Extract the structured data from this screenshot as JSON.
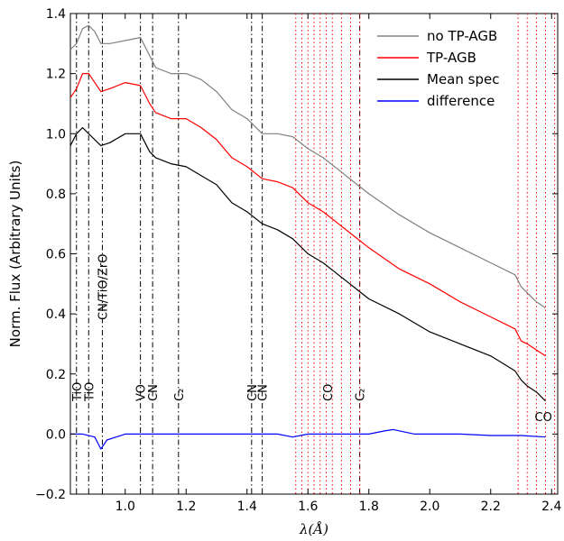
{
  "chart_data": {
    "type": "line",
    "title": "",
    "xlabel": "λ(Å)",
    "ylabel": "Norm. Flux (Arbitrary Units)",
    "xlim": [
      0.82,
      2.42
    ],
    "ylim": [
      -0.2,
      1.4
    ],
    "xticks": [
      0.8,
      1.0,
      1.2,
      1.4,
      1.6,
      1.8,
      2.0,
      2.2,
      2.4
    ],
    "xtick_labels": [
      "0.8",
      "1.0",
      "1.2",
      "1.4",
      "1.6",
      "1.8",
      "2.0",
      "2.2",
      "2.4"
    ],
    "yticks": [
      -0.2,
      0.0,
      0.2,
      0.4,
      0.6,
      0.8,
      1.0,
      1.2,
      1.4
    ],
    "ytick_labels": [
      "−0.2",
      "0.0",
      "0.2",
      "0.4",
      "0.6",
      "0.8",
      "1.0",
      "1.2",
      "1.4"
    ],
    "grid": false,
    "legend_position": "top-right",
    "series": [
      {
        "name": "no TP-AGB",
        "color": "#808080",
        "x": [
          0.82,
          0.84,
          0.86,
          0.88,
          0.9,
          0.92,
          0.95,
          1.0,
          1.05,
          1.08,
          1.1,
          1.15,
          1.2,
          1.25,
          1.3,
          1.35,
          1.4,
          1.45,
          1.5,
          1.55,
          1.6,
          1.65,
          1.7,
          1.75,
          1.8,
          1.9,
          2.0,
          2.1,
          2.2,
          2.28,
          2.3,
          2.32,
          2.35,
          2.38
        ],
        "y": [
          1.28,
          1.3,
          1.35,
          1.36,
          1.34,
          1.3,
          1.3,
          1.31,
          1.32,
          1.26,
          1.22,
          1.2,
          1.2,
          1.18,
          1.14,
          1.08,
          1.05,
          1.0,
          1.0,
          0.99,
          0.95,
          0.92,
          0.88,
          0.84,
          0.8,
          0.73,
          0.67,
          0.62,
          0.57,
          0.53,
          0.49,
          0.47,
          0.44,
          0.42
        ]
      },
      {
        "name": "TP-AGB",
        "color": "#ff0000",
        "x": [
          0.82,
          0.84,
          0.86,
          0.88,
          0.9,
          0.92,
          0.95,
          1.0,
          1.05,
          1.08,
          1.1,
          1.15,
          1.2,
          1.25,
          1.3,
          1.35,
          1.4,
          1.45,
          1.5,
          1.55,
          1.6,
          1.65,
          1.7,
          1.75,
          1.8,
          1.9,
          2.0,
          2.1,
          2.2,
          2.28,
          2.3,
          2.32,
          2.35,
          2.38
        ],
        "y": [
          1.12,
          1.15,
          1.2,
          1.2,
          1.17,
          1.14,
          1.15,
          1.17,
          1.16,
          1.1,
          1.07,
          1.05,
          1.05,
          1.02,
          0.98,
          0.92,
          0.89,
          0.85,
          0.84,
          0.82,
          0.77,
          0.74,
          0.7,
          0.66,
          0.62,
          0.55,
          0.5,
          0.44,
          0.39,
          0.35,
          0.31,
          0.3,
          0.28,
          0.26
        ]
      },
      {
        "name": "Mean spec",
        "color": "#000000",
        "x": [
          0.82,
          0.84,
          0.86,
          0.88,
          0.9,
          0.92,
          0.95,
          1.0,
          1.05,
          1.08,
          1.1,
          1.15,
          1.2,
          1.25,
          1.3,
          1.35,
          1.4,
          1.45,
          1.5,
          1.55,
          1.6,
          1.65,
          1.7,
          1.75,
          1.8,
          1.9,
          2.0,
          2.1,
          2.2,
          2.28,
          2.3,
          2.32,
          2.35,
          2.38
        ],
        "y": [
          0.96,
          1.0,
          1.02,
          1.0,
          0.98,
          0.96,
          0.97,
          1.0,
          1.0,
          0.94,
          0.92,
          0.9,
          0.89,
          0.86,
          0.83,
          0.77,
          0.74,
          0.7,
          0.68,
          0.65,
          0.6,
          0.57,
          0.53,
          0.49,
          0.45,
          0.4,
          0.34,
          0.3,
          0.26,
          0.21,
          0.18,
          0.16,
          0.14,
          0.11
        ]
      },
      {
        "name": "difference",
        "color": "#0000ff",
        "x": [
          0.82,
          0.86,
          0.9,
          0.92,
          0.94,
          1.0,
          1.1,
          1.2,
          1.3,
          1.4,
          1.5,
          1.55,
          1.6,
          1.7,
          1.8,
          1.85,
          1.88,
          1.95,
          2.0,
          2.1,
          2.2,
          2.3,
          2.38
        ],
        "y": [
          0.0,
          0.0,
          -0.01,
          -0.05,
          -0.02,
          0.0,
          0.0,
          0.0,
          0.0,
          0.0,
          0.0,
          -0.01,
          0.0,
          0.0,
          0.0,
          0.01,
          0.015,
          0.0,
          0.0,
          0.0,
          -0.005,
          -0.005,
          -0.01
        ]
      }
    ],
    "features": [
      {
        "label": "TiO",
        "x": 0.84,
        "style": "dashdot",
        "color": "#000000"
      },
      {
        "label": "TiO",
        "x": 0.88,
        "style": "dashdot",
        "color": "#000000"
      },
      {
        "label": "CN/TiO/ZrO",
        "x": 0.925,
        "style": "dashdot",
        "color": "#000000"
      },
      {
        "label": "VO",
        "x": 1.05,
        "style": "dashdot",
        "color": "#000000"
      },
      {
        "label": "CN",
        "x": 1.09,
        "style": "dashdot",
        "color": "#000000"
      },
      {
        "label": "C₂",
        "x": 1.175,
        "style": "dashdot",
        "color": "#000000"
      },
      {
        "label": "CN",
        "x": 1.415,
        "style": "dashdot",
        "color": "#000000"
      },
      {
        "label": "CN",
        "x": 1.45,
        "style": "dashdot",
        "color": "#000000"
      },
      {
        "label": "CO",
        "x": 1.665,
        "style": "dotted",
        "color": "#ff0000"
      },
      {
        "label": "C₂",
        "x": 1.77,
        "style": "dashdot",
        "color": "#000000"
      },
      {
        "label": "CO",
        "x": 2.38,
        "style": "dotted",
        "color": "#ff0000"
      }
    ],
    "co_lines_red_dotted": [
      1.56,
      1.58,
      1.6,
      1.62,
      1.64,
      1.66,
      1.68,
      1.71,
      1.74,
      1.77,
      2.29,
      2.32,
      2.35,
      2.38,
      2.41
    ]
  }
}
